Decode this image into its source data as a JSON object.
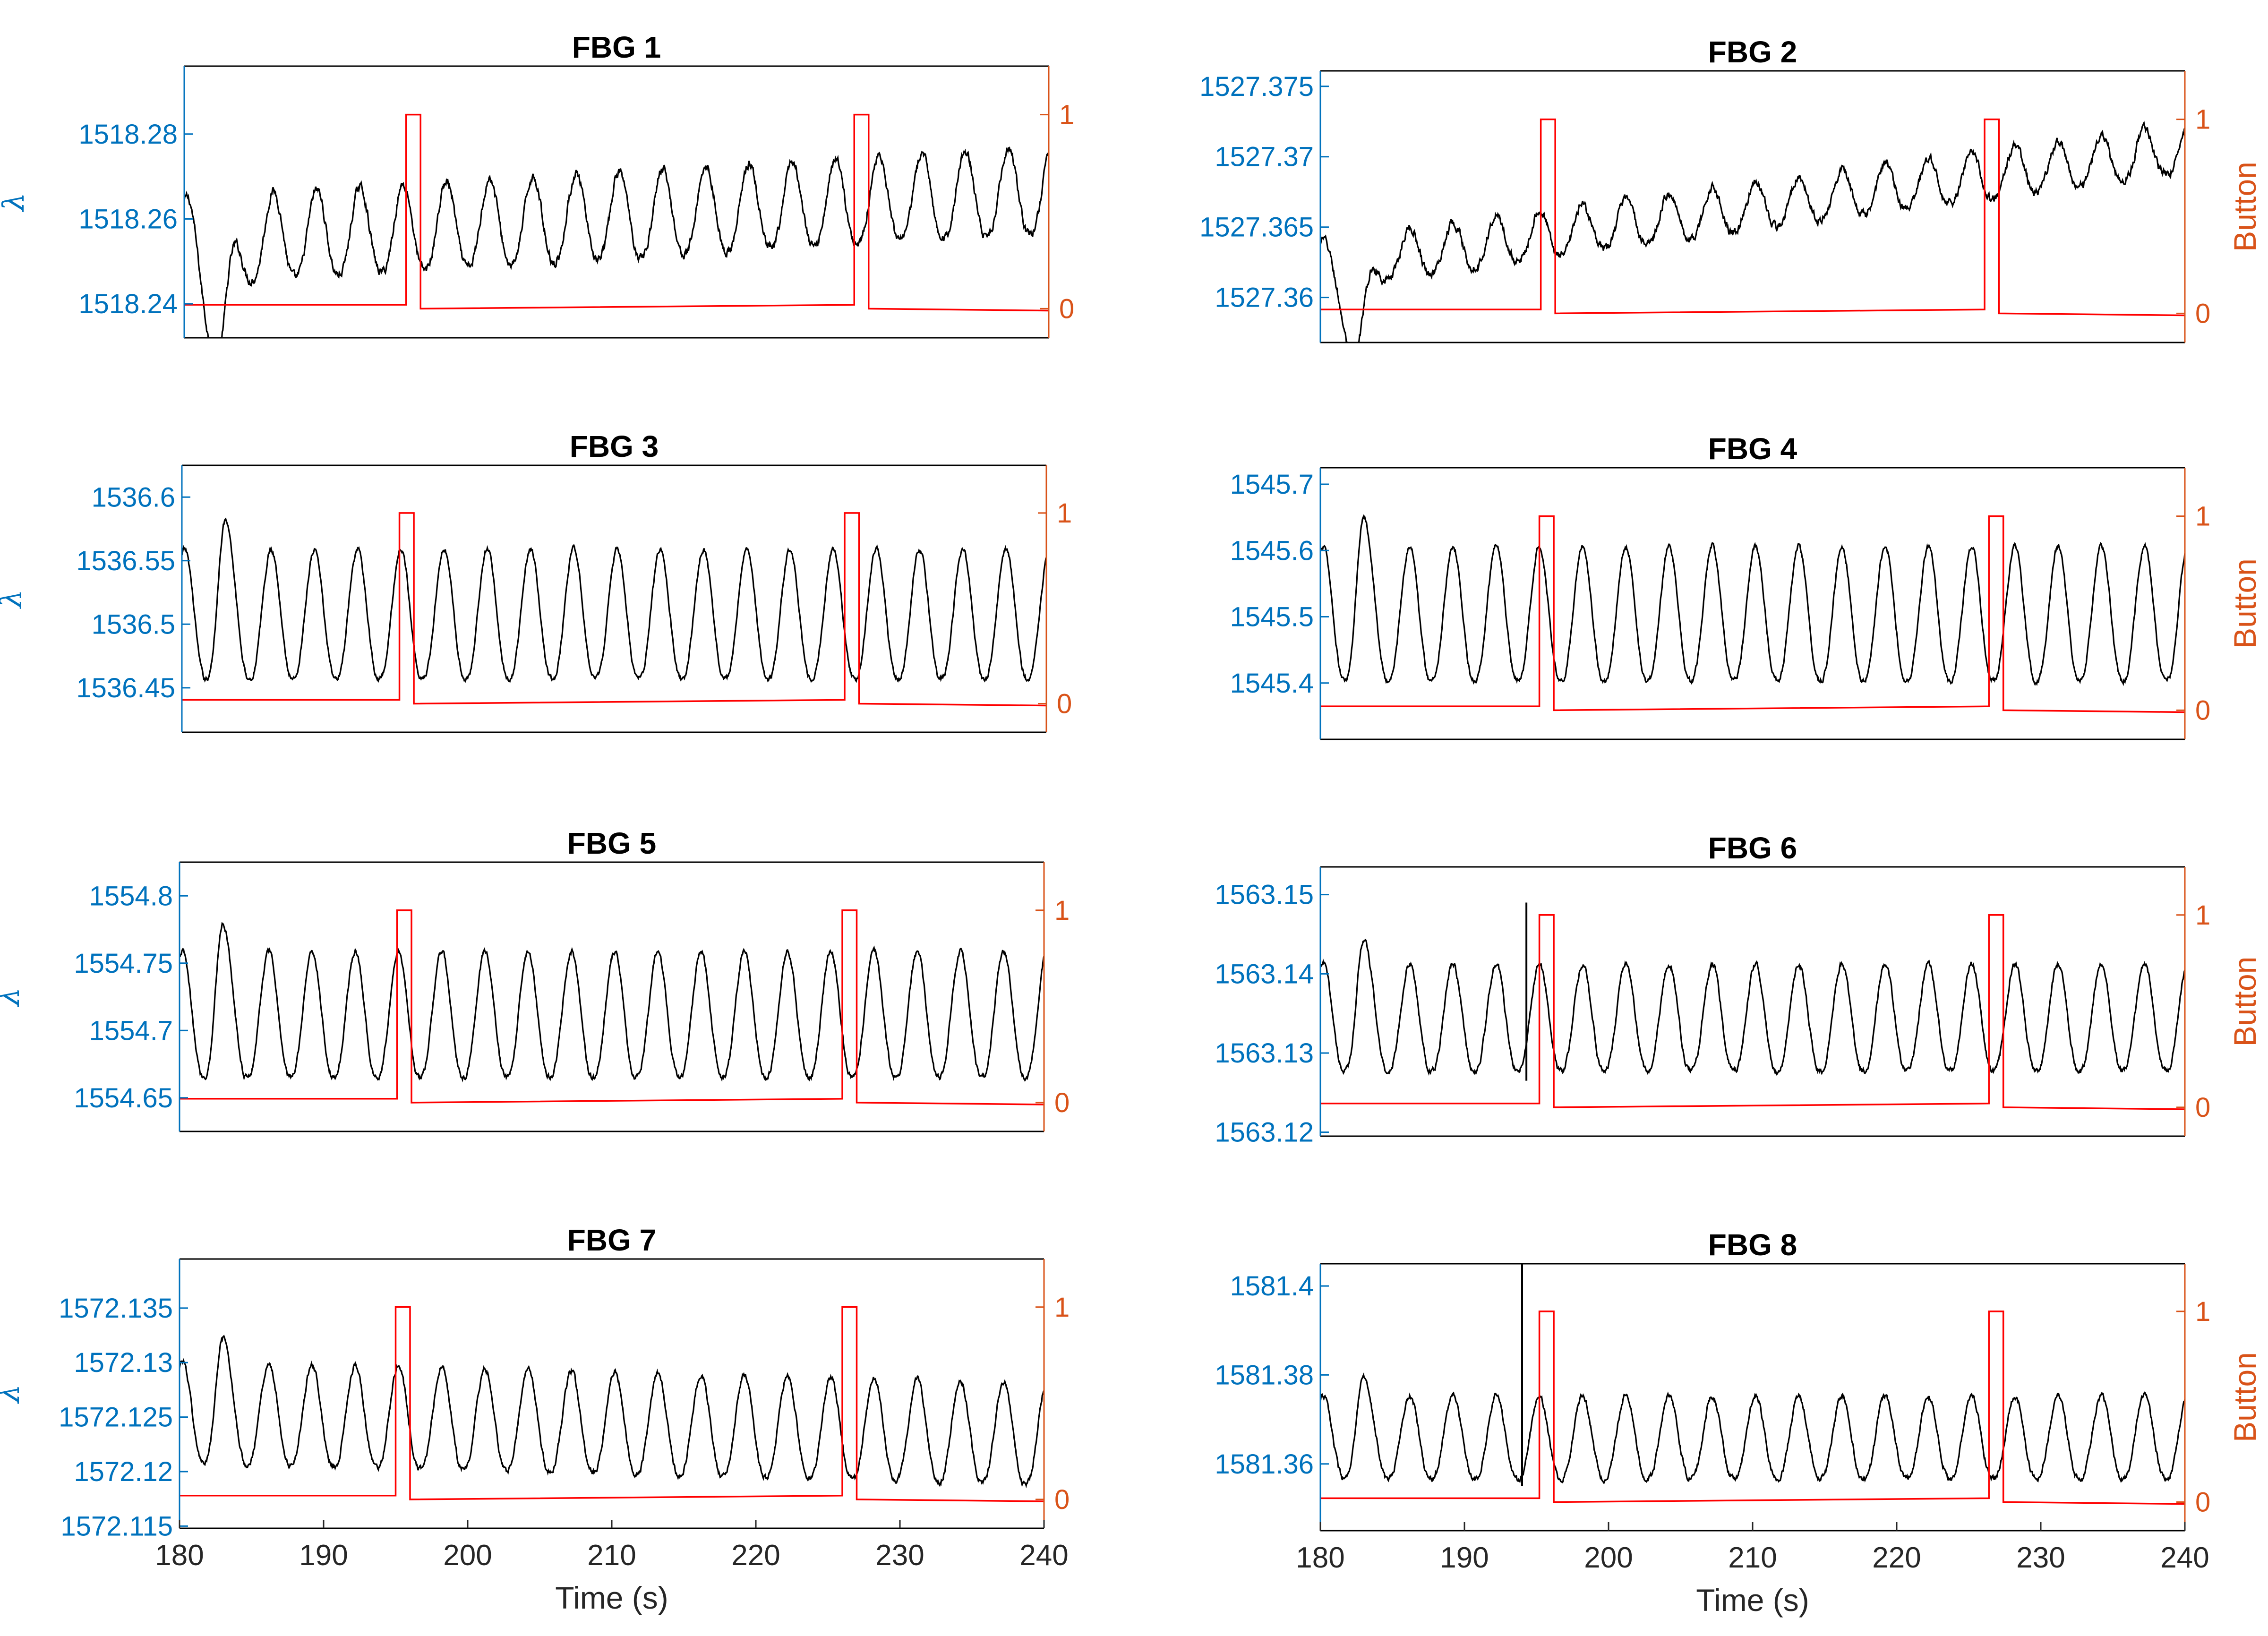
{
  "colors": {
    "left_axis": "#0072BD",
    "right_axis": "#D95319",
    "signal": "#000000",
    "button": "#FF0000",
    "box": "#000000"
  },
  "x_axis": {
    "label": "Time (s)",
    "range": [
      180,
      240
    ],
    "ticks": [
      180,
      190,
      200,
      210,
      220,
      230,
      240
    ]
  },
  "right_axis": {
    "label": "Button",
    "range": [
      -0.15,
      1.25
    ],
    "ticks": [
      0,
      1
    ]
  },
  "left_label": "λ",
  "chart_data": [
    {
      "type": "line",
      "title": "FBG 1",
      "ylabel": "λ",
      "ylim": [
        1518.232,
        1518.296
      ],
      "yticks": [
        1518.24,
        1518.26,
        1518.28
      ],
      "ytick_labels": [
        "1518.24",
        "1518.26",
        "1518.28"
      ],
      "show_left_label": true,
      "show_right_label": false,
      "show_xaxis": false,
      "base": 1518.261,
      "amp": 0.012,
      "trend": 0.012,
      "noise": 0.002,
      "start_dip": 0.026,
      "spike": null,
      "button_on": [
        [
          195.4,
          196.4
        ],
        [
          226.5,
          227.5
        ]
      ]
    },
    {
      "type": "line",
      "title": "FBG 2",
      "ylabel": "λ",
      "ylim": [
        1527.3568,
        1527.3761
      ],
      "yticks": [
        1527.36,
        1527.365,
        1527.37,
        1527.375
      ],
      "ytick_labels": [
        "1527.36",
        "1527.365",
        "1527.37",
        "1527.375"
      ],
      "show_left_label": false,
      "show_right_label": true,
      "show_xaxis": false,
      "base": 1527.3665,
      "amp": 0.002,
      "trend": 0.0082,
      "noise": 0.0006,
      "start_dip": 0.0066,
      "spike": null,
      "button_on": [
        [
          195.3,
          196.3
        ],
        [
          226.1,
          227.1
        ]
      ]
    },
    {
      "type": "line",
      "title": "FBG 3",
      "ylabel": "λ",
      "ylim": [
        1536.415,
        1536.625
      ],
      "yticks": [
        1536.45,
        1536.5,
        1536.55,
        1536.6
      ],
      "ytick_labels": [
        "1536.45",
        "1536.5",
        "1536.55",
        "1536.6"
      ],
      "show_left_label": true,
      "show_right_label": false,
      "show_xaxis": false,
      "base": 1536.508,
      "amp": 0.06,
      "trend": 0,
      "noise": 0.004,
      "start_dip": 0.0,
      "spike": null,
      "button_on": [
        [
          195.1,
          196.1
        ],
        [
          226.0,
          227.0
        ]
      ]
    },
    {
      "type": "line",
      "title": "FBG 4",
      "ylabel": "λ",
      "ylim": [
        1545.315,
        1545.725
      ],
      "yticks": [
        1545.4,
        1545.5,
        1545.6,
        1545.7
      ],
      "ytick_labels": [
        "1545.4",
        "1545.5",
        "1545.6",
        "1545.7"
      ],
      "show_left_label": false,
      "show_right_label": true,
      "show_xaxis": false,
      "base": 1545.505,
      "amp": 0.12,
      "trend": 0,
      "noise": 0.008,
      "start_dip": 0.0,
      "spike": null,
      "button_on": [
        [
          195.2,
          196.2
        ],
        [
          226.4,
          227.4
        ]
      ]
    },
    {
      "type": "line",
      "title": "FBG 5",
      "ylabel": "λ",
      "ylim": [
        1554.625,
        1554.825
      ],
      "yticks": [
        1554.65,
        1554.7,
        1554.75,
        1554.8
      ],
      "ytick_labels": [
        "1554.65",
        "1554.7",
        "1554.75",
        "1554.8"
      ],
      "show_left_label": true,
      "show_right_label": false,
      "show_xaxis": false,
      "base": 1554.712,
      "amp": 0.055,
      "trend": 0,
      "noise": 0.004,
      "start_dip": 0.0,
      "spike": null,
      "button_on": [
        [
          195.1,
          196.1
        ],
        [
          226.0,
          227.0
        ]
      ]
    },
    {
      "type": "line",
      "title": "FBG 6",
      "ylabel": "λ",
      "ylim": [
        1563.1195,
        1563.1535
      ],
      "yticks": [
        1563.12,
        1563.13,
        1563.14,
        1563.15
      ],
      "ytick_labels": [
        "1563.12",
        "1563.13",
        "1563.14",
        "1563.15"
      ],
      "show_left_label": false,
      "show_right_label": true,
      "show_xaxis": false,
      "base": 1563.1345,
      "amp": 0.008,
      "trend": 0,
      "noise": 0.0007,
      "start_dip": 0.0,
      "spike": [
        194.3,
        1563.149
      ],
      "button_on": [
        [
          195.2,
          196.2
        ],
        [
          226.4,
          227.4
        ]
      ]
    },
    {
      "type": "line",
      "title": "FBG 7",
      "ylabel": "λ",
      "ylim": [
        1572.1148,
        1572.1395
      ],
      "yticks": [
        1572.115,
        1572.12,
        1572.125,
        1572.13,
        1572.135
      ],
      "ytick_labels": [
        "1572.115",
        "1572.12",
        "1572.125",
        "1572.13",
        "1572.135"
      ],
      "show_left_label": true,
      "show_right_label": false,
      "show_xaxis": true,
      "base": 1572.1245,
      "amp": 0.0055,
      "trend": -0.002,
      "noise": 0.0005,
      "start_dip": 0.0,
      "spike": null,
      "button_on": [
        [
          195.0,
          196.0
        ],
        [
          226.0,
          227.0
        ]
      ]
    },
    {
      "type": "line",
      "title": "FBG 8",
      "ylabel": "λ",
      "ylim": [
        1581.345,
        1581.405
      ],
      "yticks": [
        1581.36,
        1581.38,
        1581.4
      ],
      "ytick_labels": [
        "1581.36",
        "1581.38",
        "1581.4"
      ],
      "show_left_label": false,
      "show_right_label": true,
      "show_xaxis": true,
      "base": 1581.366,
      "amp": 0.011,
      "trend": 0,
      "noise": 0.0012,
      "start_dip": 0.0,
      "spike": [
        194.0,
        1581.405
      ],
      "button_on": [
        [
          195.2,
          196.2
        ],
        [
          226.4,
          227.4
        ]
      ]
    }
  ]
}
